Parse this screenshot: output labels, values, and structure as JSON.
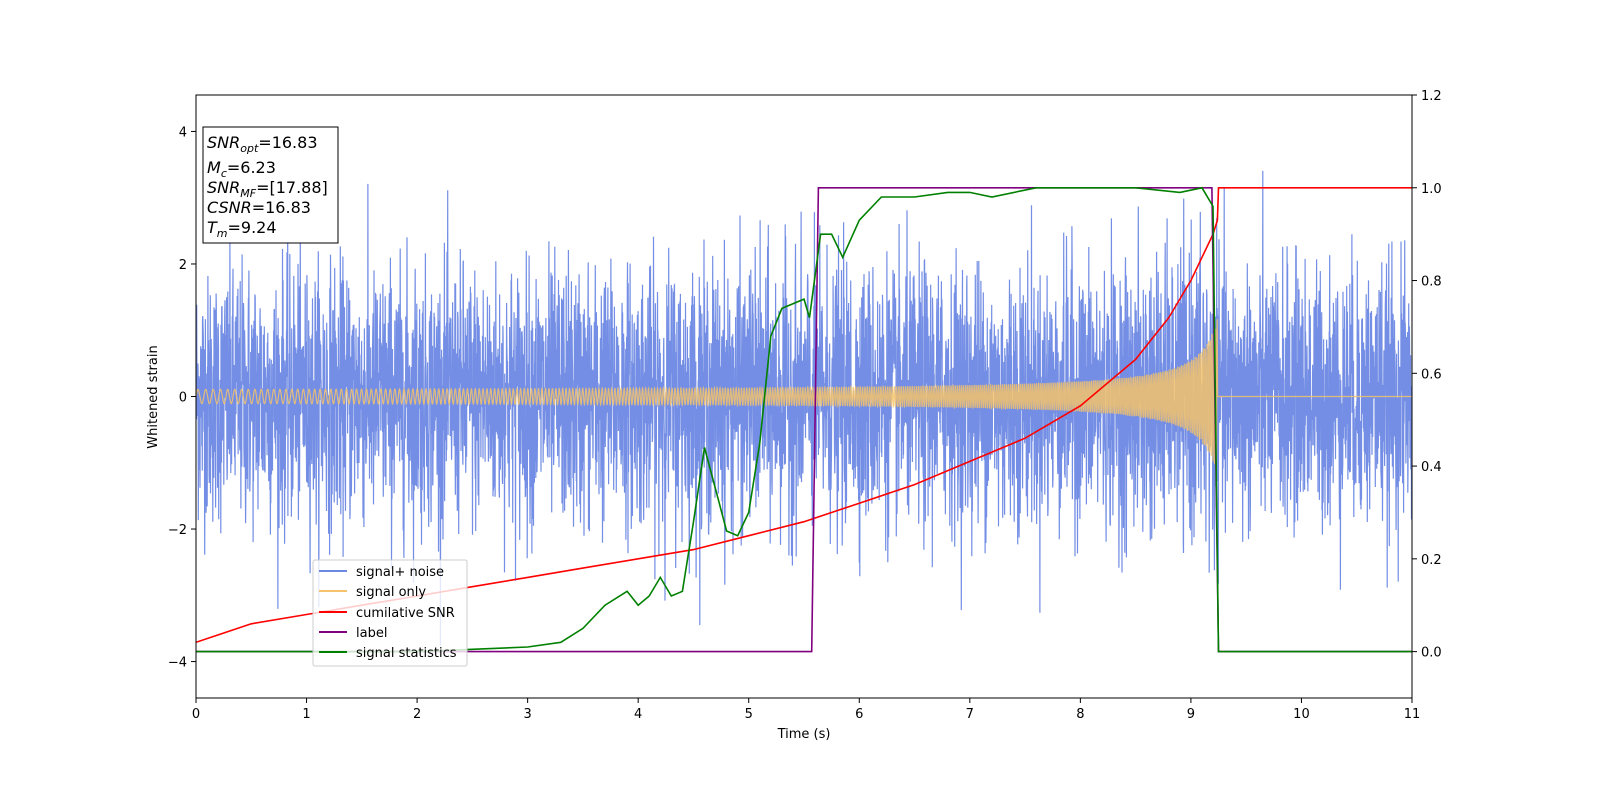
{
  "chart_data": {
    "type": "line",
    "xlabel": "Time (s)",
    "ylabel_left": "Whitened strain",
    "ylabel_right": "",
    "xlim": [
      0,
      11
    ],
    "ylim_left": [
      -4.55,
      4.55
    ],
    "ylim_right": [
      -0.1,
      1.2
    ],
    "xticks": [
      "0",
      "1",
      "2",
      "3",
      "4",
      "5",
      "6",
      "7",
      "8",
      "9",
      "10",
      "11"
    ],
    "yticks_left": [
      "−4",
      "−2",
      "0",
      "2",
      "4"
    ],
    "yticks_right": [
      "0.0",
      "0.2",
      "0.4",
      "0.6",
      "0.8",
      "1.0",
      "1.2"
    ],
    "grid": false,
    "legend_position": "lower-left",
    "info_box": {
      "snr_opt": {
        "main": "SNR",
        "sub": "opt",
        "value": "=16.83"
      },
      "m_c": {
        "main": "M",
        "sub": "c",
        "value": "=6.23"
      },
      "snr_mf": {
        "main": "SNR",
        "sub": "MF",
        "value": "=[17.88]"
      },
      "csnr": {
        "main": "CSNR",
        "value": "=16.83"
      },
      "t_m": {
        "main": "T",
        "sub": "m",
        "value": "=9.24"
      }
    },
    "series": [
      {
        "name": "signal+ noise",
        "axis": "left",
        "color": "#6b88e3",
        "description_values": {
          "noise_sigma": 0.95,
          "t_end": 11
        }
      },
      {
        "name": "signal only",
        "axis": "left",
        "color": "#f5c36b",
        "merger_time": 9.24,
        "amplitude_start": 0.08,
        "amplitude_peak": 1.2
      },
      {
        "name": "cumilative SNR",
        "axis": "right",
        "color": "#ff0000",
        "x": [
          0,
          0.5,
          1,
          1.5,
          2,
          2.5,
          3,
          3.5,
          4,
          4.5,
          5,
          5.5,
          6,
          6.5,
          7,
          7.5,
          8,
          8.5,
          8.8,
          9.0,
          9.1,
          9.2,
          9.24,
          9.25,
          11
        ],
        "values": [
          0.02,
          0.06,
          0.08,
          0.1,
          0.12,
          0.14,
          0.16,
          0.18,
          0.2,
          0.22,
          0.25,
          0.28,
          0.32,
          0.36,
          0.41,
          0.46,
          0.53,
          0.63,
          0.72,
          0.8,
          0.85,
          0.9,
          0.93,
          1.0,
          1.0
        ]
      },
      {
        "name": "label",
        "axis": "right",
        "color": "#800080",
        "x": [
          0,
          5.57,
          5.63,
          9.19,
          9.25,
          11
        ],
        "values": [
          0.0,
          0.0,
          1.0,
          1.0,
          0.0,
          0.0
        ]
      },
      {
        "name": "signal statistics",
        "axis": "right",
        "color": "#008000",
        "x": [
          0,
          1,
          2,
          2.5,
          3,
          3.3,
          3.5,
          3.7,
          3.9,
          4.0,
          4.1,
          4.2,
          4.3,
          4.4,
          4.5,
          4.6,
          4.7,
          4.8,
          4.9,
          5.0,
          5.1,
          5.2,
          5.3,
          5.5,
          5.55,
          5.65,
          5.75,
          5.85,
          6.0,
          6.2,
          6.5,
          6.8,
          7.0,
          7.2,
          7.6,
          8.0,
          8.5,
          8.9,
          9.1,
          9.2,
          9.25,
          9.35,
          11
        ],
        "values": [
          0.0,
          0.0,
          0.0,
          0.005,
          0.01,
          0.02,
          0.05,
          0.1,
          0.13,
          0.1,
          0.12,
          0.16,
          0.12,
          0.13,
          0.28,
          0.44,
          0.35,
          0.26,
          0.25,
          0.3,
          0.45,
          0.68,
          0.74,
          0.76,
          0.72,
          0.9,
          0.9,
          0.85,
          0.93,
          0.98,
          0.98,
          0.99,
          0.99,
          0.98,
          1.0,
          1.0,
          1.0,
          0.99,
          1.0,
          0.96,
          0.0,
          0.0,
          0.0
        ]
      }
    ]
  }
}
